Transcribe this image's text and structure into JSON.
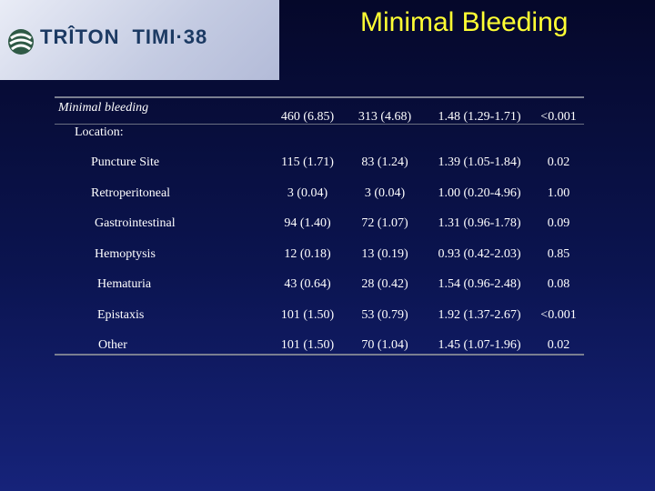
{
  "header": {
    "logo_text_1": "TRÎTON",
    "logo_text_2": "TIMI·38",
    "title": "Minimal Bleeding"
  },
  "table": {
    "section_label": "Minimal bleeding",
    "summary": [
      "460 (6.85)",
      "313 (4.68)",
      "1.48 (1.29-1.71)",
      "<0.001"
    ],
    "location_label": "Location:",
    "rows": [
      {
        "label": "Puncture Site",
        "c1": "115 (1.71)",
        "c2": "83 (1.24)",
        "c3": "1.39 (1.05-1.84)",
        "c4": "0.02"
      },
      {
        "label": "Retroperitoneal",
        "c1": "3 (0.04)",
        "c2": "3 (0.04)",
        "c3": "1.00 (0.20-4.96)",
        "c4": "1.00"
      },
      {
        "label": "Gastrointestinal",
        "c1": "94 (1.40)",
        "c2": "72 (1.07)",
        "c3": "1.31 (0.96-1.78)",
        "c4": "0.09"
      },
      {
        "label": "Hemoptysis",
        "c1": "12 (0.18)",
        "c2": "13 (0.19)",
        "c3": "0.93 (0.42-2.03)",
        "c4": "0.85"
      },
      {
        "label": "Hematuria",
        "c1": "43 (0.64)",
        "c2": "28 (0.42)",
        "c3": "1.54 (0.96-2.48)",
        "c4": "0.08"
      },
      {
        "label": "Epistaxis",
        "c1": "101 (1.50)",
        "c2": "53 (0.79)",
        "c3": "1.92 (1.37-2.67)",
        "c4": "<0.001"
      },
      {
        "label": "Other",
        "c1": "101 (1.50)",
        "c2": "70 (1.04)",
        "c3": "1.45 (1.07-1.96)",
        "c4": "0.02"
      }
    ]
  },
  "colors": {
    "title": "#ffff33",
    "logo_text": "#1c3a63",
    "background_top": "#05082a",
    "background_bottom": "#16237a"
  }
}
